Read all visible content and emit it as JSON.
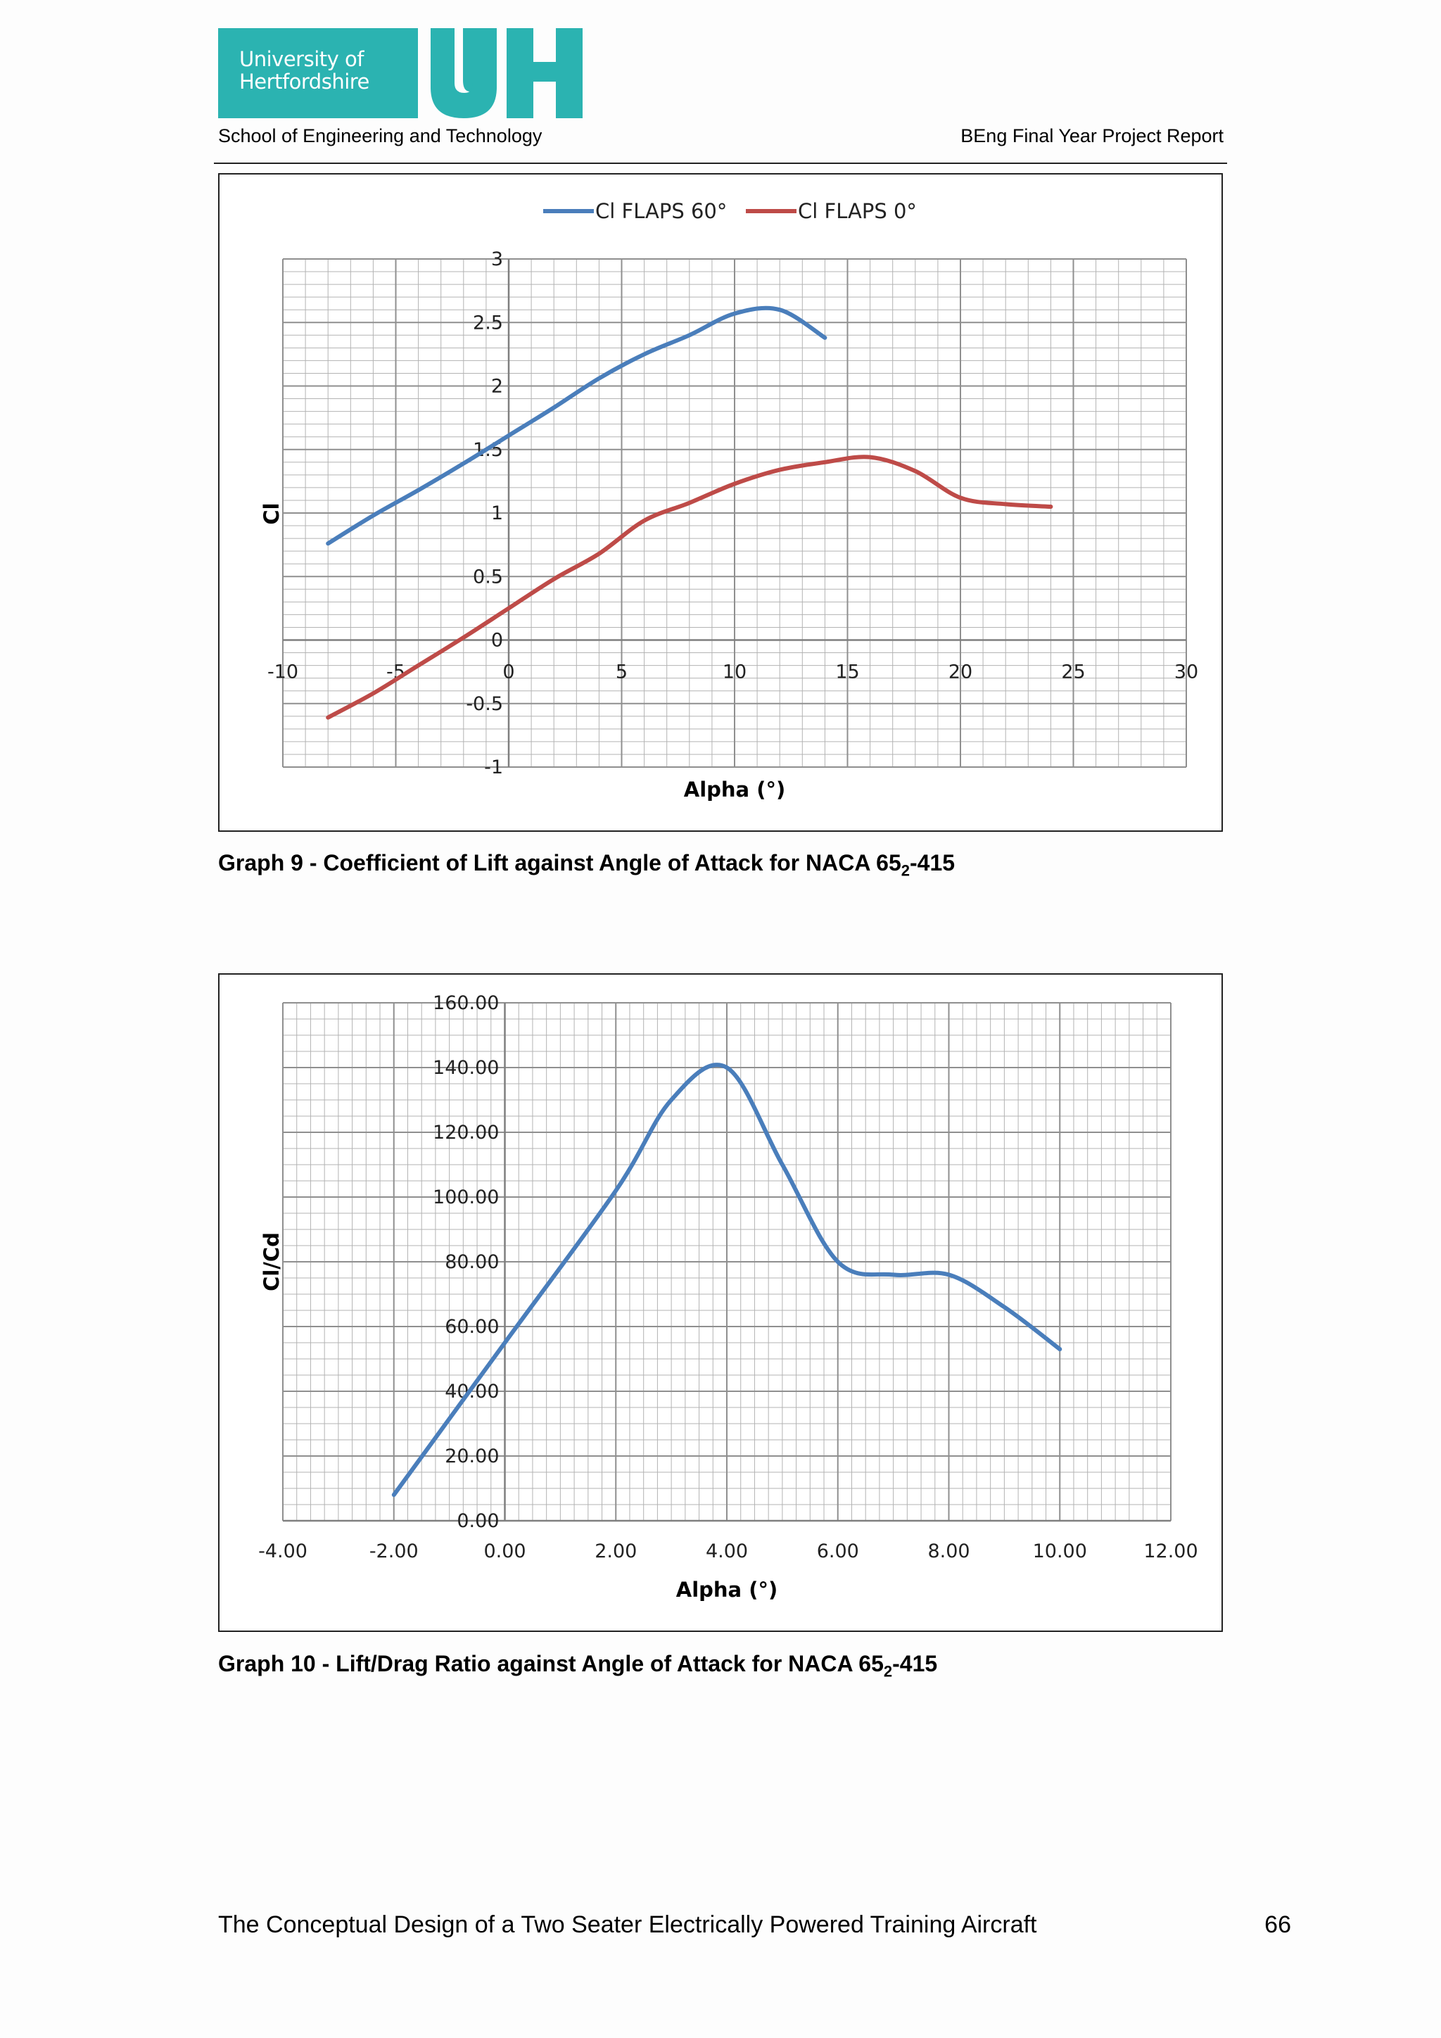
{
  "header": {
    "logo_text_1": "University of",
    "logo_text_2": "Hertfordshire",
    "school": "School of Engineering and Technology",
    "report": "BEng Final Year Project Report"
  },
  "colors": {
    "brand_teal": "#2bb3b1",
    "series_blue": "#4a7ebb",
    "series_red": "#be4b48",
    "grid": "#8f8f8f"
  },
  "captions": {
    "graph9_pre": "Graph 9 - Coefficient of Lift against Angle of Attack for NACA 65",
    "graph9_sub": "2",
    "graph9_post": "-415",
    "graph10_pre": "Graph 10 - Lift/Drag Ratio against Angle of Attack for NACA 65",
    "graph10_sub": "2",
    "graph10_post": "-415"
  },
  "footer": {
    "title": "The Conceptual Design of a Two Seater Electrically Powered Training Aircraft",
    "page": "66"
  },
  "chart_data": [
    {
      "type": "line",
      "title": "",
      "xlabel": "Alpha (°)",
      "ylabel": "Cl",
      "xlim": [
        -10,
        30
      ],
      "ylim": [
        -1,
        3
      ],
      "xticks": [
        "-10",
        "-5",
        "0",
        "5",
        "10",
        "15",
        "20",
        "25",
        "30"
      ],
      "yticks": [
        "-1",
        "-0.5",
        "0",
        "0.5",
        "1",
        "1.5",
        "2",
        "2.5",
        "3"
      ],
      "grid": true,
      "legend": "top",
      "series": [
        {
          "name": "Cl FLAPS 60°",
          "color": "#4a7ebb",
          "x": [
            -8,
            -6,
            -4,
            -2,
            0,
            2,
            4,
            6,
            8,
            10,
            12,
            14
          ],
          "y": [
            0.76,
            0.98,
            1.18,
            1.39,
            1.61,
            1.83,
            2.06,
            2.25,
            2.4,
            2.57,
            2.6,
            2.38
          ]
        },
        {
          "name": "Cl FLAPS 0°",
          "color": "#be4b48",
          "x": [
            -8,
            -6,
            -4,
            -2,
            0,
            2,
            4,
            6,
            8,
            10,
            12,
            14,
            16,
            18,
            20,
            22,
            24
          ],
          "y": [
            -0.61,
            -0.42,
            -0.2,
            0.02,
            0.25,
            0.48,
            0.68,
            0.94,
            1.08,
            1.23,
            1.34,
            1.4,
            1.44,
            1.33,
            1.12,
            1.07,
            1.05
          ]
        }
      ]
    },
    {
      "type": "line",
      "title": "",
      "xlabel": "Alpha (°)",
      "ylabel": "Cl/Cd",
      "xlim": [
        -4,
        12
      ],
      "ylim": [
        0,
        160
      ],
      "xticks": [
        "-4.00",
        "-2.00",
        "0.00",
        "2.00",
        "4.00",
        "6.00",
        "8.00",
        "10.00",
        "12.00"
      ],
      "yticks": [
        "0.00",
        "20.00",
        "40.00",
        "60.00",
        "80.00",
        "100.00",
        "120.00",
        "140.00",
        "160.00"
      ],
      "grid": true,
      "legend": "none",
      "series": [
        {
          "color": "#4a7ebb",
          "x": [
            -2,
            0,
            2,
            3,
            4,
            5,
            6,
            7,
            8,
            9,
            10
          ],
          "y": [
            8,
            55,
            102,
            130,
            140,
            110,
            80,
            76,
            76,
            66,
            53
          ]
        }
      ]
    }
  ]
}
